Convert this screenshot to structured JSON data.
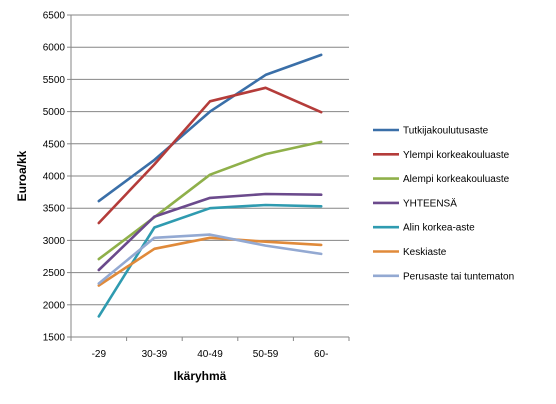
{
  "chart_data": {
    "type": "line",
    "title": "",
    "xlabel": "Ikäryhmä",
    "ylabel": "Euroa/kk",
    "categories": [
      "-29",
      "30-39",
      "40-49",
      "50-59",
      "60-"
    ],
    "ylim": [
      1500,
      6500
    ],
    "yticks": [
      1500,
      2000,
      2500,
      3000,
      3500,
      4000,
      4500,
      5000,
      5500,
      6000,
      6500
    ],
    "grid": "horizontal",
    "legend_position": "right",
    "series": [
      {
        "name": "Tutkijakoulutusaste",
        "color": "#3a6fa8",
        "values": [
          3610,
          4250,
          5000,
          5570,
          5880
        ]
      },
      {
        "name": "Ylempi korkeakouluaste",
        "color": "#b43c3a",
        "values": [
          3270,
          4180,
          5160,
          5370,
          4990
        ]
      },
      {
        "name": "Alempi korkeakouluaste",
        "color": "#8fb04a",
        "values": [
          2710,
          3360,
          4020,
          4340,
          4530
        ]
      },
      {
        "name": "YHTEENSÄ",
        "color": "#6b4a8c",
        "values": [
          2540,
          3370,
          3660,
          3720,
          3710
        ]
      },
      {
        "name": "Alin korkea-aste",
        "color": "#2f9bb0",
        "values": [
          1820,
          3200,
          3500,
          3550,
          3530
        ]
      },
      {
        "name": "Keskiaste",
        "color": "#e08a3a",
        "values": [
          2300,
          2870,
          3040,
          2980,
          2930
        ]
      },
      {
        "name": "Perusaste tai tuntematon",
        "color": "#93a9d2",
        "values": [
          2330,
          3040,
          3090,
          2920,
          2790
        ]
      }
    ]
  }
}
